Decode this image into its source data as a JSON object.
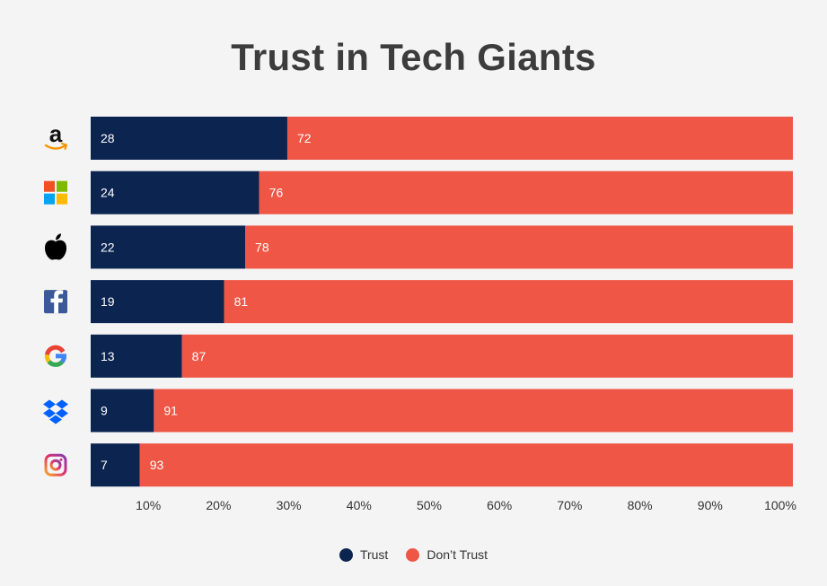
{
  "chart_data": {
    "type": "bar",
    "orientation": "horizontal",
    "stacked": true,
    "title": "Trust in Tech Giants",
    "categories": [
      "Amazon",
      "Microsoft",
      "Apple",
      "Facebook",
      "Google",
      "Dropbox",
      "Instagram"
    ],
    "category_icons": [
      "amazon-logo-icon",
      "microsoft-logo-icon",
      "apple-logo-icon",
      "facebook-logo-icon",
      "google-logo-icon",
      "dropbox-logo-icon",
      "instagram-logo-icon"
    ],
    "series": [
      {
        "name": "Trust",
        "color": "#0b2450",
        "values": [
          28,
          24,
          22,
          19,
          13,
          9,
          7
        ]
      },
      {
        "name": "Don’t Trust",
        "color": "#ef5645",
        "values": [
          72,
          76,
          78,
          81,
          87,
          91,
          93
        ]
      }
    ],
    "x_ticks": [
      "10%",
      "20%",
      "30%",
      "40%",
      "50%",
      "60%",
      "70%",
      "80%",
      "90%",
      "100%"
    ],
    "xlim": [
      0,
      100
    ],
    "grid": false,
    "legend_position": "bottom-center"
  },
  "legend": {
    "items": [
      {
        "label": "Trust",
        "color": "#0b2450"
      },
      {
        "label": "Don’t Trust",
        "color": "#ef5645"
      }
    ]
  }
}
